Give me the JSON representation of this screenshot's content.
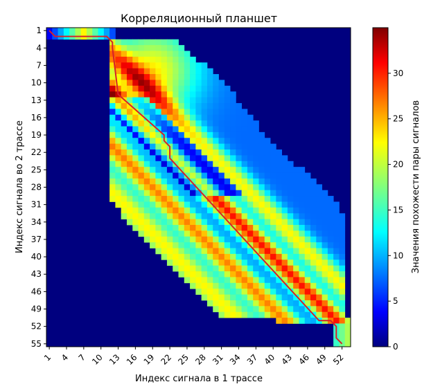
{
  "chart_data": {
    "type": "heatmap",
    "title": "Корреляционный планшет",
    "xlabel": "Индекс сигнала в 1 трассе",
    "ylabel": "Индекс сигнала во 2 трассе",
    "x_range": [
      1,
      53
    ],
    "y_range": [
      1,
      55
    ],
    "x_ticks": [
      "1",
      "4",
      "7",
      "10",
      "13",
      "16",
      "19",
      "22",
      "25",
      "28",
      "31",
      "34",
      "37",
      "40",
      "43",
      "46",
      "49",
      "52"
    ],
    "y_ticks": [
      "1",
      "4",
      "7",
      "10",
      "13",
      "16",
      "19",
      "22",
      "25",
      "28",
      "31",
      "34",
      "37",
      "40",
      "43",
      "46",
      "49",
      "52",
      "55"
    ],
    "colorbar": {
      "label": "Значения похожести пары сигналов",
      "range": [
        0,
        35
      ],
      "ticks": [
        "0",
        "5",
        "10",
        "15",
        "20",
        "25",
        "30"
      ],
      "colormap": "jet"
    },
    "path": {
      "color": "#d6202a",
      "points": [
        [
          1,
          1
        ],
        [
          2,
          2
        ],
        [
          11,
          2
        ],
        [
          12,
          3
        ],
        [
          12,
          4
        ],
        [
          13,
          12
        ],
        [
          21,
          19
        ],
        [
          21,
          20
        ],
        [
          22,
          21
        ],
        [
          22,
          23
        ],
        [
          48,
          51
        ],
        [
          50,
          51
        ],
        [
          51,
          52
        ],
        [
          51,
          54
        ],
        [
          52,
          55
        ]
      ]
    },
    "band": {
      "description_rows": [
        {
          "y": 1,
          "from": 1,
          "to": 12
        },
        {
          "y": 2,
          "from": 1,
          "to": 12
        },
        {
          "y": 3,
          "from": 12,
          "to": 23
        },
        {
          "y": 4,
          "from": 12,
          "to": 24
        },
        {
          "y": 10,
          "from": 12,
          "to": 31
        },
        {
          "y": 20,
          "from": 12,
          "to": 39
        },
        {
          "y": 30,
          "from": 12,
          "to": 50
        },
        {
          "y": 34,
          "from": 15,
          "to": 52
        },
        {
          "y": 40,
          "from": 21,
          "to": 52
        },
        {
          "y": 50,
          "from": 31,
          "to": 52
        },
        {
          "y": 52,
          "from": 51,
          "to": 53
        },
        {
          "y": 55,
          "from": 51,
          "to": 53
        }
      ]
    }
  }
}
